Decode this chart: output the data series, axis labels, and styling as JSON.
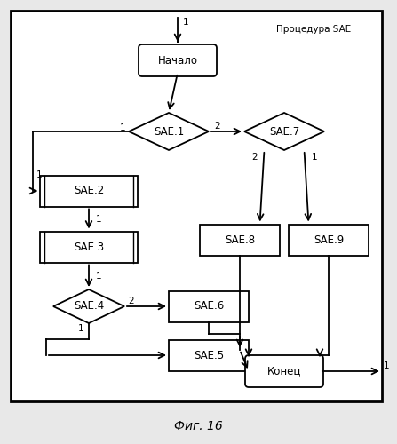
{
  "title": "Фиг. 16",
  "procedure_label": "Процедура SAE",
  "figsize": [
    4.47,
    5.0
  ],
  "dpi": 100,
  "nodes": {
    "start": {
      "label": "Начало"
    },
    "SAE1": {
      "label": "SAE.1"
    },
    "SAE2": {
      "label": "SAE.2"
    },
    "SAE3": {
      "label": "SAE.3"
    },
    "SAE4": {
      "label": "SAE.4"
    },
    "SAE5": {
      "label": "SAE.5"
    },
    "SAE6": {
      "label": "SAE.6"
    },
    "SAE7": {
      "label": "SAE.7"
    },
    "SAE8": {
      "label": "SAE.8"
    },
    "SAE9": {
      "label": "SAE.9"
    },
    "end": {
      "label": "Конец"
    }
  }
}
